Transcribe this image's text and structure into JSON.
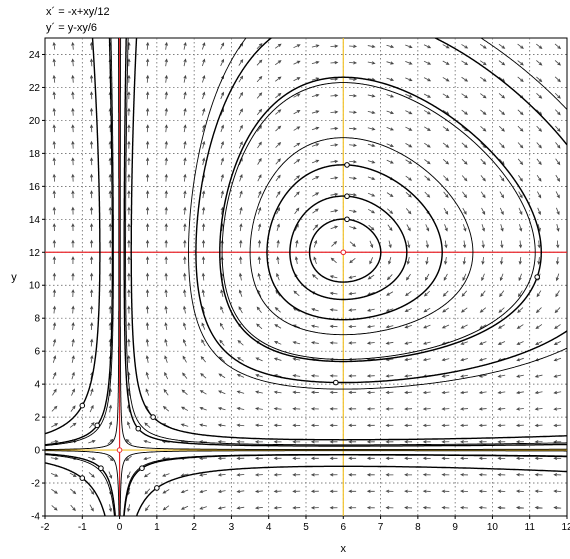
{
  "equations": [
    "x´ = -x+xy/12",
    "y´ = y-xy/6"
  ],
  "chart_data": {
    "type": "line",
    "title": "",
    "xlabel": "x",
    "ylabel": "y",
    "xlim": [
      -2,
      12
    ],
    "ylim": [
      -4,
      25
    ],
    "xticks": [
      -2,
      -1,
      0,
      1,
      2,
      3,
      4,
      5,
      6,
      7,
      8,
      9,
      10,
      11,
      12
    ],
    "yticks": [
      -4,
      -2,
      0,
      2,
      4,
      6,
      8,
      10,
      12,
      14,
      16,
      18,
      20,
      22,
      24
    ],
    "grid": true,
    "grid_style": "dotted",
    "direction_field": true,
    "system": {
      "a": 1,
      "b": 12,
      "c": 1,
      "d": 6
    },
    "reference_lines": [
      {
        "orientation": "vertical",
        "value": 0,
        "color": "#e8252a"
      },
      {
        "orientation": "horizontal",
        "value": 12,
        "color": "#e8252a"
      },
      {
        "orientation": "vertical",
        "value": 6,
        "color": "#f2c22a"
      },
      {
        "orientation": "horizontal",
        "value": 0,
        "color": "#f2c22a"
      }
    ],
    "equilibria": [
      {
        "x": 0,
        "y": 0
      },
      {
        "x": 6,
        "y": 12
      }
    ],
    "initial_points": [
      {
        "x": 6.1,
        "y": 14.0
      },
      {
        "x": 6.1,
        "y": 15.4
      },
      {
        "x": 6.1,
        "y": 17.3
      },
      {
        "x": 11.2,
        "y": 10.5
      },
      {
        "x": 5.8,
        "y": 4.1
      },
      {
        "x": -1.0,
        "y": 2.7
      },
      {
        "x": -0.6,
        "y": 1.5
      },
      {
        "x": 0.5,
        "y": 1.3
      },
      {
        "x": 0.9,
        "y": 2.0
      },
      {
        "x": -0.5,
        "y": -1.1
      },
      {
        "x": -1.0,
        "y": -1.7
      },
      {
        "x": 0.6,
        "y": -1.1
      },
      {
        "x": 1.0,
        "y": -2.3
      }
    ],
    "extra_seeds": [
      {
        "x": 6.0,
        "y": 7.0
      },
      {
        "x": 6.0,
        "y": 5.5
      },
      {
        "x": 3.0,
        "y": 5.0
      },
      {
        "x": -0.3,
        "y": 0.3
      },
      {
        "x": 0.3,
        "y": 0.3
      },
      {
        "x": -0.3,
        "y": -0.3
      },
      {
        "x": 0.3,
        "y": -0.3
      },
      {
        "x": 2.0,
        "y": 0.5
      },
      {
        "x": 2.0,
        "y": -0.4
      },
      {
        "x": -1.5,
        "y": 0.4
      },
      {
        "x": -1.5,
        "y": -0.4
      }
    ]
  }
}
